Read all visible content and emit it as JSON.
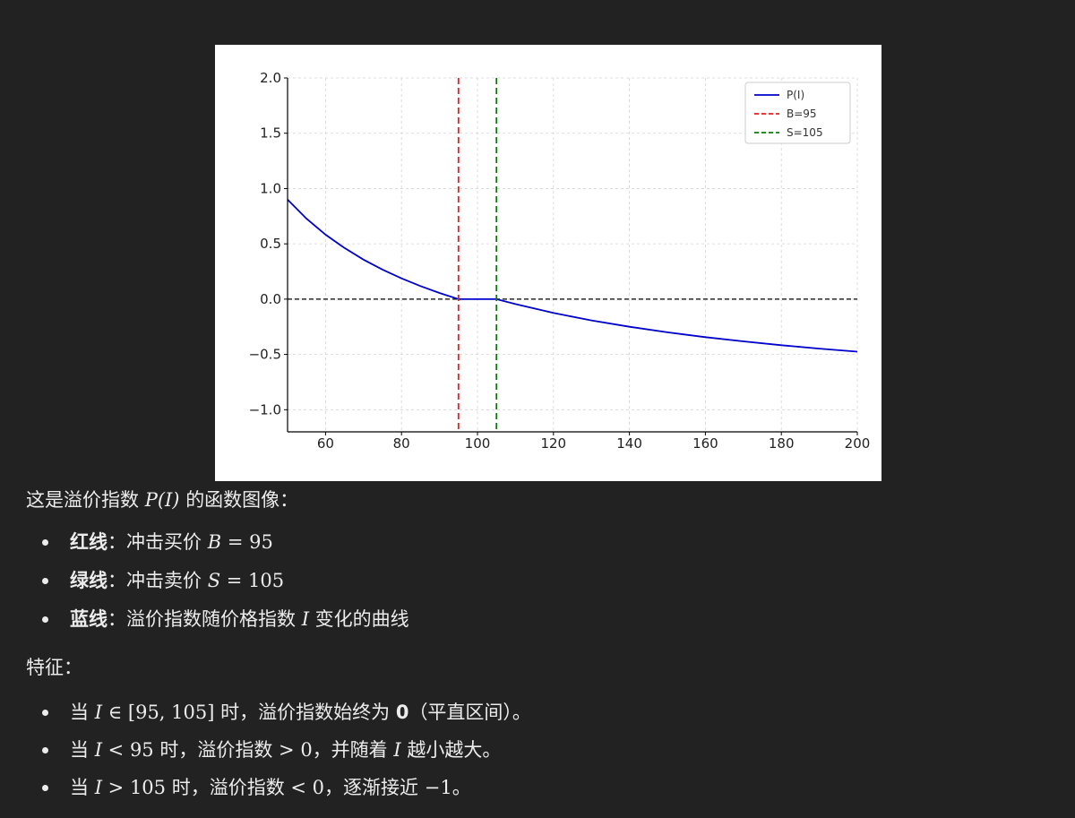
{
  "chart_data": {
    "type": "line",
    "title": "",
    "xlabel": "",
    "ylabel": "",
    "xlim": [
      50,
      200
    ],
    "ylim": [
      -1.2,
      2.0
    ],
    "xticks": [
      60,
      80,
      100,
      120,
      140,
      160,
      180,
      200
    ],
    "yticks": [
      2.0,
      1.5,
      1.0,
      0.5,
      0.0,
      -0.5,
      -1.0
    ],
    "ytick_labels": [
      "2.0",
      "1.5",
      "1.0",
      "0.5",
      "0.0",
      "−0.5",
      "−1.0"
    ],
    "grid": true,
    "legend_position": "top-right",
    "series": [
      {
        "name": "",
        "label_suffix": "P(I)",
        "color": "#0000cc",
        "style": "solid",
        "x": [
          50,
          55,
          60,
          65,
          70,
          75,
          80,
          85,
          90,
          95,
          100,
          105,
          110,
          120,
          130,
          140,
          150,
          160,
          170,
          180,
          190,
          200
        ],
        "y": [
          0.9,
          0.727,
          0.583,
          0.462,
          0.357,
          0.267,
          0.188,
          0.118,
          0.056,
          0.0,
          0.0,
          0.0,
          -0.045,
          -0.125,
          -0.192,
          -0.25,
          -0.3,
          -0.344,
          -0.382,
          -0.417,
          -0.447,
          -0.475
        ]
      },
      {
        "name": "B=95",
        "color": "#dd2222",
        "style": "dashed",
        "vertical_x": 95
      },
      {
        "name": "S=105",
        "color": "#117711",
        "style": "dashed",
        "vertical_x": 105
      }
    ],
    "reference_line": {
      "y": 0,
      "color": "#000000",
      "style": "dashed"
    }
  },
  "text": {
    "intro_prefix": "这是溢价指数",
    "intro_math": "P(I)",
    "intro_suffix": "的函数图像：",
    "items": [
      {
        "bold": "红线",
        "sep": "：",
        "text": "冲击买价",
        "math_var": "B",
        "math_rest": "= 95"
      },
      {
        "bold": "绿线",
        "sep": "：",
        "text": "冲击卖价",
        "math_var": "S",
        "math_rest": "= 105"
      },
      {
        "bold": "蓝线",
        "sep": "：",
        "text": "溢价指数随价格指数",
        "math_var": "I",
        "tail": "变化的曲线"
      }
    ],
    "features_label": "特征：",
    "features": [
      {
        "pre": "当",
        "math_var": "I",
        "math_rest": "∈ [95, 105]",
        "post": "时，溢价指数始终为",
        "bold": "0",
        "tail": "（平直区间）。"
      },
      {
        "pre": "当",
        "math_var": "I",
        "math_rest": "< 95",
        "post": "时，溢价指数",
        "math2": "> 0",
        "mid": "，并随着",
        "math3": "I",
        "tail": "越小越大。"
      },
      {
        "pre": "当",
        "math_var": "I",
        "math_rest": "> 105",
        "post": "时，溢价指数",
        "math2": "< 0",
        "tail": "，逐渐接近",
        "math3": "−1",
        "end": "。"
      }
    ]
  }
}
